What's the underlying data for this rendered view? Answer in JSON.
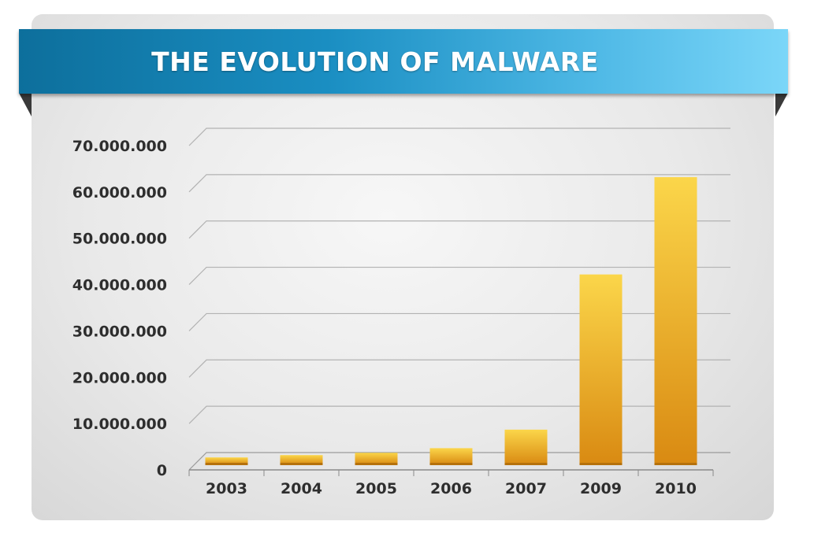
{
  "title": "THE EVOLUTION OF MALWARE",
  "colors": {
    "banner_start": "#0d6f9c",
    "banner_end": "#7bd6f8",
    "bar_top": "#fbd64a",
    "bar_bottom": "#d98a12"
  },
  "chart_data": {
    "type": "bar",
    "title": "THE EVOLUTION OF MALWARE",
    "categories": [
      "2003",
      "2004",
      "2005",
      "2006",
      "2007",
      "2009",
      "2010"
    ],
    "values": [
      1500000,
      2000000,
      2500000,
      3500000,
      7500000,
      41000000,
      62000000
    ],
    "yticks": [
      "0",
      "10.000.000",
      "20.000.000",
      "30.000.000",
      "40.000.000",
      "50.000.000",
      "60.000.000",
      "70.000.000"
    ],
    "ylim": [
      0,
      70000000
    ],
    "xlabel": "",
    "ylabel": "",
    "grid": true,
    "legend": "none"
  }
}
